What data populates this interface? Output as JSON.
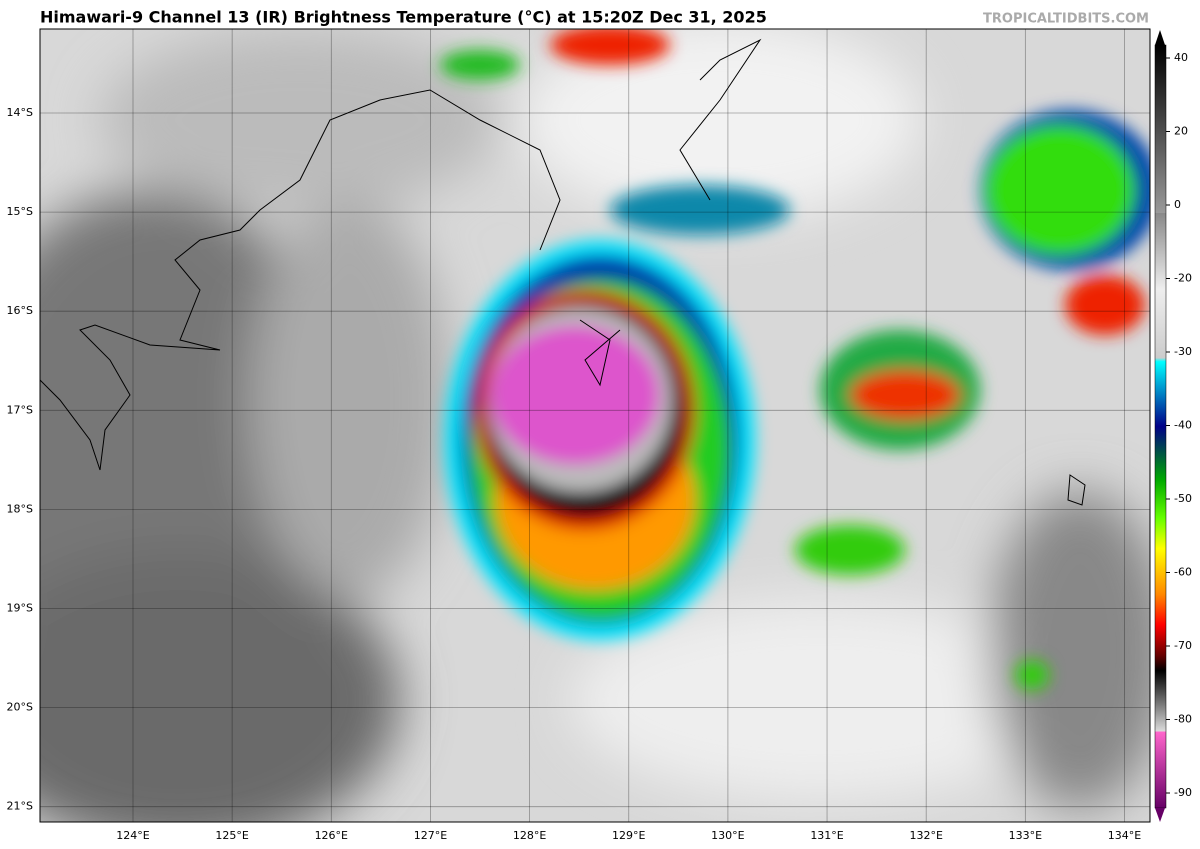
{
  "header": {
    "title": "Himawari-9 Channel 13 (IR) Brightness Temperature (°C) at 15:20Z Dec 31, 2025",
    "credit": "TROPICALTIDBITS.COM"
  },
  "map": {
    "lat_labels": [
      "14°S",
      "15°S",
      "16°S",
      "17°S",
      "18°S",
      "19°S",
      "20°S",
      "21°S"
    ],
    "lon_labels": [
      "124°E",
      "125°E",
      "126°E",
      "127°E",
      "128°E",
      "129°E",
      "130°E",
      "131°E",
      "132°E",
      "133°E",
      "134°E"
    ]
  },
  "colorbar": {
    "ticks": [
      40,
      20,
      0,
      -20,
      -30,
      -40,
      -50,
      -60,
      -70,
      -80,
      -90
    ]
  }
}
